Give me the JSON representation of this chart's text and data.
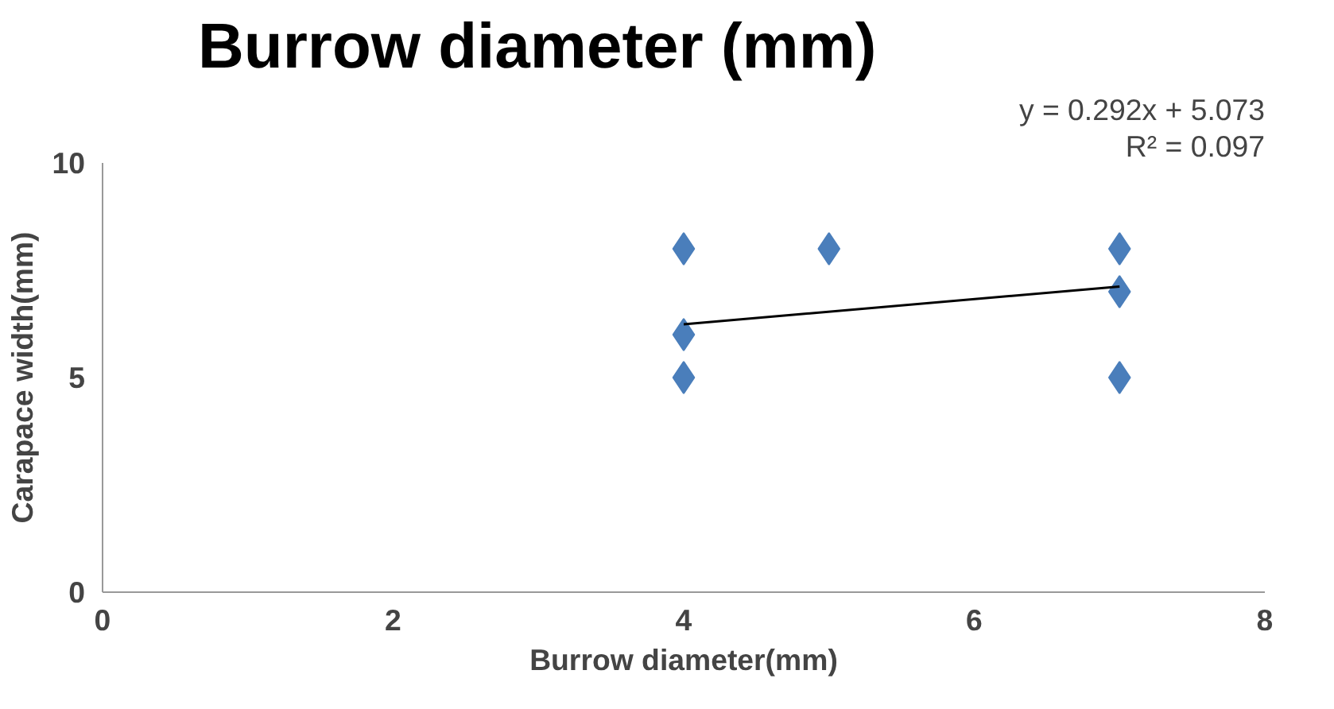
{
  "chart_data": {
    "type": "scatter",
    "title": "Burrow diameter (mm)",
    "xlabel": "Burrow diameter(mm)",
    "ylabel": "Carapace width(mm)",
    "series": [
      {
        "color": "#4a7ebb",
        "marker": "diamond",
        "x": [
          4,
          4,
          4,
          5,
          7,
          7,
          7
        ],
        "values": [
          8,
          6,
          5,
          8,
          8,
          7,
          5
        ]
      },
      {
        "type": "line",
        "color": "#000000",
        "marker": "none",
        "x": [
          4,
          7
        ],
        "values": [
          6.24,
          7.12
        ]
      }
    ],
    "annotations": [
      "y = 0.292x + 5.073",
      "R² = 0.097"
    ],
    "xlim": [
      0,
      8
    ],
    "ylim": [
      0,
      10
    ],
    "xticks": [
      0,
      2,
      4,
      6,
      8
    ],
    "yticks": [
      0,
      5,
      10
    ],
    "grid": false
  }
}
